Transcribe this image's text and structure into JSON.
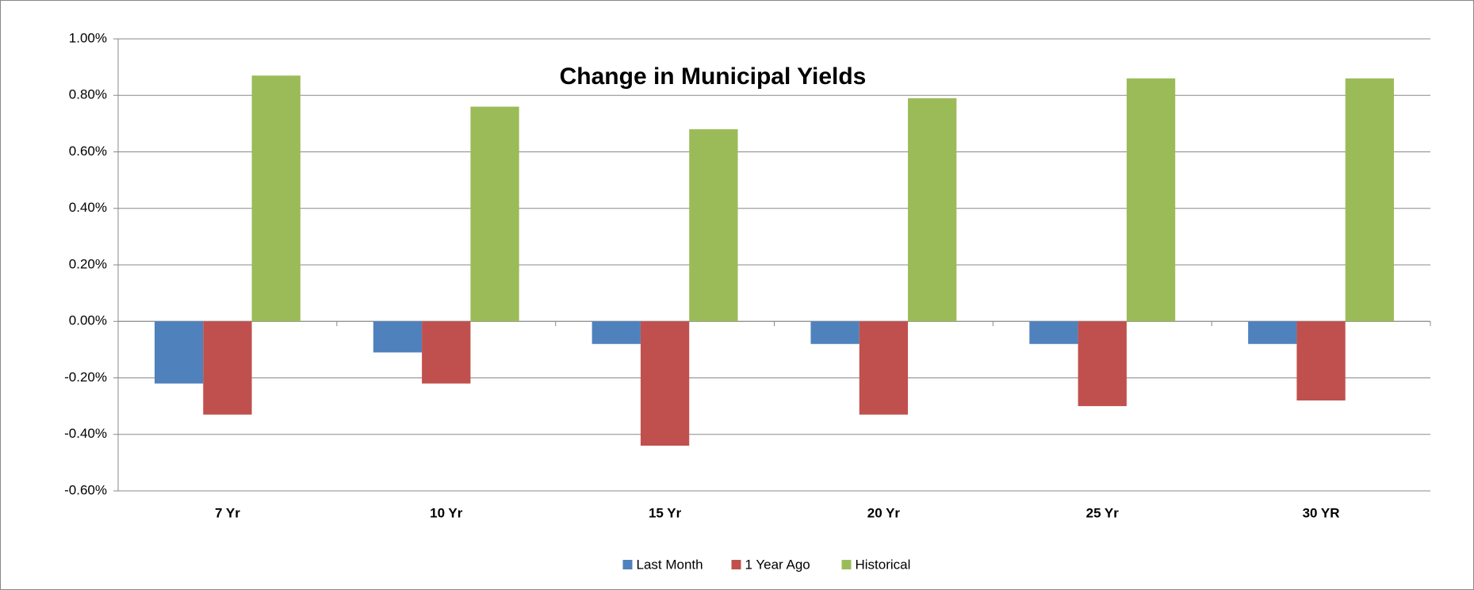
{
  "chart_data": {
    "type": "bar",
    "title": "Change in Municipal Yields",
    "categories": [
      "7 Yr",
      "10 Yr",
      "15 Yr",
      "20 Yr",
      "25 Yr",
      "30 YR"
    ],
    "series": [
      {
        "name": "Last Month",
        "color": "#4f81bd",
        "values": [
          -0.22,
          -0.11,
          -0.08,
          -0.08,
          -0.08,
          -0.08
        ]
      },
      {
        "name": "1 Year Ago",
        "color": "#c0504d",
        "values": [
          -0.33,
          -0.22,
          -0.44,
          -0.33,
          -0.3,
          -0.28
        ]
      },
      {
        "name": "Historical",
        "color": "#9bbb59",
        "values": [
          0.87,
          0.76,
          0.68,
          0.79,
          0.86,
          0.86
        ]
      }
    ],
    "ylim": [
      -0.6,
      1.0
    ],
    "yticks": [
      {
        "value": -0.6,
        "label": "-0.60%"
      },
      {
        "value": -0.4,
        "label": "-0.40%"
      },
      {
        "value": -0.2,
        "label": "-0.20%"
      },
      {
        "value": 0,
        "label": "0.00%"
      },
      {
        "value": 0.2,
        "label": "0.20%"
      },
      {
        "value": 0.4,
        "label": "0.40%"
      },
      {
        "value": 0.6,
        "label": "0.60%"
      },
      {
        "value": 0.8,
        "label": "0.80%"
      },
      {
        "value": 1.0,
        "label": "1.00%"
      }
    ],
    "grid": true,
    "legend": "bottom"
  }
}
